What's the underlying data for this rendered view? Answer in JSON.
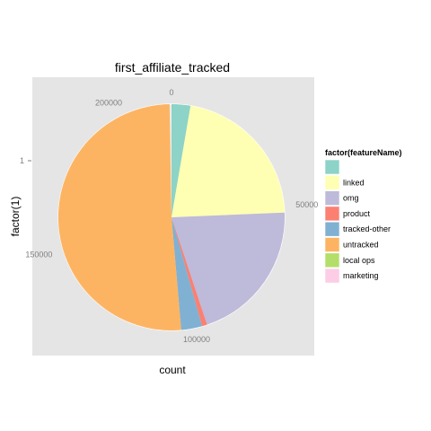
{
  "chart_data": {
    "type": "pie",
    "title": "first_affiliate_tracked",
    "xlabel": "count",
    "ylabel": "factor(1)",
    "y_tick_labels": [
      "1"
    ],
    "theta_range": [
      0,
      213826
    ],
    "theta_ticks": [
      0,
      50000,
      100000,
      150000,
      200000
    ],
    "theta_tick_labels": [
      "0",
      "50000",
      "100000",
      "150000",
      "200000"
    ],
    "legend_title": "factor(featureName)",
    "legend_position": "right",
    "grid": true,
    "categories": [
      "",
      "linked",
      "omg",
      "product",
      "tracked-other",
      "untracked",
      "local ops",
      "marketing"
    ],
    "values": [
      5763,
      46287,
      43982,
      1557,
      6399,
      109232,
      3,
      4
    ],
    "colors": [
      "#8DD3C7",
      "#FFFFB3",
      "#BEBADA",
      "#FB8072",
      "#80B1D3",
      "#FDB462",
      "#B3DE69",
      "#FCCDE5"
    ]
  }
}
